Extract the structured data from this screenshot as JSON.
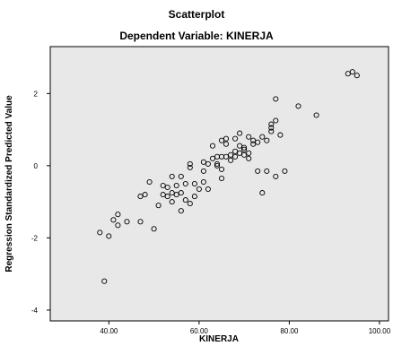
{
  "chart_data": {
    "type": "scatter",
    "title": "Scatterplot",
    "subtitle": "Dependent Variable: KINERJA",
    "xlabel": "KINERJA",
    "ylabel": "Regression Standardized Predicted Value",
    "xlim": [
      27,
      102
    ],
    "ylim": [
      -4.3,
      3.3
    ],
    "xticks": [
      40,
      60,
      80,
      100
    ],
    "xtick_labels": [
      "40.00",
      "60.00",
      "80.00",
      "100.00"
    ],
    "yticks": [
      -4,
      -2,
      0,
      2
    ],
    "ytick_labels": [
      "-4",
      "-2",
      "0",
      "2"
    ],
    "grid": false,
    "plot_background": "#e8e8e8",
    "marker": "open-circle",
    "points": [
      [
        38,
        -1.85
      ],
      [
        40,
        -1.95
      ],
      [
        41,
        -1.5
      ],
      [
        42,
        -1.35
      ],
      [
        42,
        -1.65
      ],
      [
        44,
        -1.55
      ],
      [
        39,
        -3.2
      ],
      [
        47,
        -1.55
      ],
      [
        47,
        -0.85
      ],
      [
        48,
        -0.8
      ],
      [
        49,
        -0.45
      ],
      [
        50,
        -1.75
      ],
      [
        51,
        -1.1
      ],
      [
        52,
        -0.55
      ],
      [
        52,
        -0.8
      ],
      [
        53,
        -0.6
      ],
      [
        53,
        -0.85
      ],
      [
        54,
        -0.3
      ],
      [
        54,
        -0.75
      ],
      [
        54,
        -1.0
      ],
      [
        55,
        -0.55
      ],
      [
        55,
        -0.8
      ],
      [
        56,
        -0.3
      ],
      [
        56,
        -0.75
      ],
      [
        56,
        -1.25
      ],
      [
        57,
        -0.5
      ],
      [
        57,
        -0.95
      ],
      [
        58,
        -0.05
      ],
      [
        58,
        0.05
      ],
      [
        58,
        -1.05
      ],
      [
        59,
        -0.5
      ],
      [
        59,
        -0.85
      ],
      [
        60,
        -0.65
      ],
      [
        61,
        -0.15
      ],
      [
        61,
        -0.45
      ],
      [
        61,
        0.1
      ],
      [
        62,
        -0.65
      ],
      [
        62,
        0.05
      ],
      [
        63,
        0.2
      ],
      [
        63,
        0.55
      ],
      [
        64,
        0.25
      ],
      [
        64,
        0.05
      ],
      [
        64,
        0.0
      ],
      [
        65,
        -0.35
      ],
      [
        65,
        -0.1
      ],
      [
        65,
        0.25
      ],
      [
        65,
        0.7
      ],
      [
        66,
        0.75
      ],
      [
        66,
        0.6
      ],
      [
        66,
        0.25
      ],
      [
        67,
        0.15
      ],
      [
        67,
        0.3
      ],
      [
        68,
        0.4
      ],
      [
        68,
        0.75
      ],
      [
        68,
        0.25
      ],
      [
        69,
        0.55
      ],
      [
        69,
        0.9
      ],
      [
        69,
        0.35
      ],
      [
        70,
        0.45
      ],
      [
        70,
        0.3
      ],
      [
        70,
        0.5
      ],
      [
        71,
        0.2
      ],
      [
        71,
        0.35
      ],
      [
        71,
        0.8
      ],
      [
        72,
        0.6
      ],
      [
        72,
        0.7
      ],
      [
        73,
        -0.15
      ],
      [
        73,
        0.65
      ],
      [
        74,
        -0.75
      ],
      [
        74,
        0.8
      ],
      [
        75,
        -0.15
      ],
      [
        75,
        0.7
      ],
      [
        76,
        1.05
      ],
      [
        76,
        1.15
      ],
      [
        76,
        0.95
      ],
      [
        77,
        1.85
      ],
      [
        77,
        1.25
      ],
      [
        77,
        -0.3
      ],
      [
        78,
        0.85
      ],
      [
        79,
        -0.15
      ],
      [
        82,
        1.65
      ],
      [
        86,
        1.4
      ],
      [
        93,
        2.55
      ],
      [
        94,
        2.6
      ],
      [
        95,
        2.5
      ]
    ]
  }
}
